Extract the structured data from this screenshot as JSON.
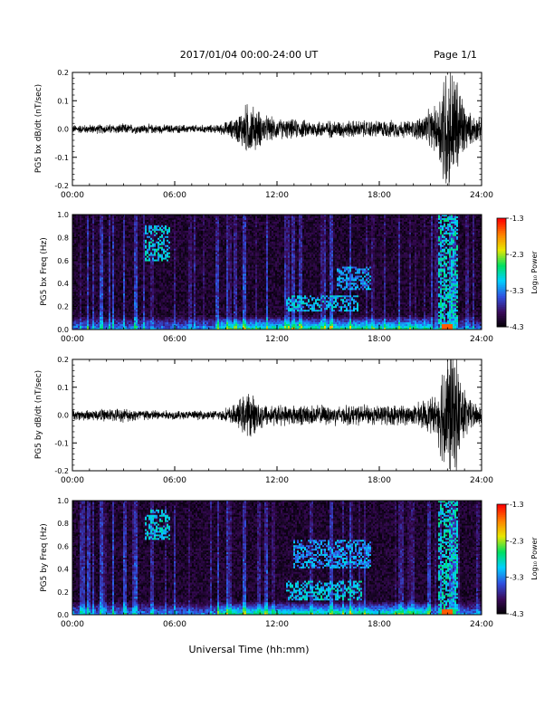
{
  "header": {
    "title": "2017/01/04  00:00-24:00 UT",
    "page": "Page 1/1"
  },
  "xaxis": {
    "label": "Universal Time (hh:mm)",
    "ticks": [
      "00:00",
      "06:00",
      "12:00",
      "18:00",
      "24:00"
    ],
    "range_hours": [
      0,
      24
    ]
  },
  "colorbar": {
    "label": "Log₁₀ Power",
    "ticks": [
      "-1.3",
      "-2.3",
      "-3.3",
      "-4.3"
    ],
    "range": [
      -4.3,
      -1.3
    ],
    "colormap": [
      "#000000",
      "#3a0a5a",
      "#3050e0",
      "#00d0ff",
      "#00e060",
      "#e8e800",
      "#ff8000",
      "#ff0000"
    ]
  },
  "chart_data": [
    {
      "type": "line",
      "ylabel": "PG5 bx dB/dt (nT/sec)",
      "ylim": [
        -0.2,
        0.2
      ],
      "yticks": [
        "0.2",
        "0.1",
        "0.0",
        "-0.1",
        "-0.2"
      ],
      "series_color": "#000000",
      "envelope": {
        "note": "noise amplitude vs time",
        "time_h": [
          0,
          3,
          6,
          8.5,
          9.5,
          10.3,
          10.8,
          11.3,
          12,
          14,
          16,
          18,
          20,
          21.4,
          21.8,
          22.2,
          22.6,
          23.2,
          24
        ],
        "amp": [
          0.012,
          0.015,
          0.012,
          0.012,
          0.03,
          0.08,
          0.06,
          0.04,
          0.03,
          0.025,
          0.025,
          0.025,
          0.025,
          0.07,
          0.2,
          0.2,
          0.15,
          0.05,
          0.03
        ]
      }
    },
    {
      "type": "heatmap",
      "ylabel": "PG5 bx Freq (Hz)",
      "ylim": [
        0.0,
        1.0
      ],
      "yticks": [
        "1.0",
        "0.8",
        "0.6",
        "0.4",
        "0.2",
        "0.0"
      ],
      "features": [
        {
          "time_h": [
            4.3,
            5.7
          ],
          "freq": [
            0.6,
            0.9
          ],
          "level": -3.0
        },
        {
          "time_h": [
            12.5,
            16.8
          ],
          "freq": [
            0.15,
            0.3
          ],
          "level": -3.1
        },
        {
          "time_h": [
            15.5,
            17.5
          ],
          "freq": [
            0.35,
            0.55
          ],
          "level": -3.2
        },
        {
          "time_h": [
            21.5,
            22.6
          ],
          "freq": [
            0.0,
            1.0
          ],
          "level": -2.9
        }
      ]
    },
    {
      "type": "line",
      "ylabel": "PG5 by dB/dt (nT/sec)",
      "ylim": [
        -0.2,
        0.2
      ],
      "yticks": [
        "0.2",
        "0.1",
        "0.0",
        "-0.1",
        "-0.2"
      ],
      "series_color": "#000000",
      "envelope": {
        "note": "noise amplitude vs time",
        "time_h": [
          0,
          3,
          6,
          8.5,
          9.5,
          10.3,
          10.8,
          11.3,
          12,
          14,
          16,
          18,
          20,
          21.4,
          21.8,
          22.2,
          22.6,
          23.2,
          24
        ],
        "amp": [
          0.015,
          0.02,
          0.013,
          0.013,
          0.03,
          0.07,
          0.05,
          0.035,
          0.03,
          0.03,
          0.03,
          0.03,
          0.03,
          0.06,
          0.2,
          0.2,
          0.16,
          0.05,
          0.03
        ]
      }
    },
    {
      "type": "heatmap",
      "ylabel": "PG5 by Freq (Hz)",
      "ylim": [
        0.0,
        1.0
      ],
      "yticks": [
        "1.0",
        "0.8",
        "0.6",
        "0.4",
        "0.2",
        "0.0"
      ],
      "features": [
        {
          "time_h": [
            4.3,
            5.7
          ],
          "freq": [
            0.65,
            0.92
          ],
          "level": -3.0
        },
        {
          "time_h": [
            12.5,
            17.0
          ],
          "freq": [
            0.12,
            0.3
          ],
          "level": -3.0
        },
        {
          "time_h": [
            13.0,
            17.5
          ],
          "freq": [
            0.4,
            0.65
          ],
          "level": -3.2
        },
        {
          "time_h": [
            21.5,
            22.6
          ],
          "freq": [
            0.0,
            1.0
          ],
          "level": -2.9
        }
      ]
    }
  ]
}
